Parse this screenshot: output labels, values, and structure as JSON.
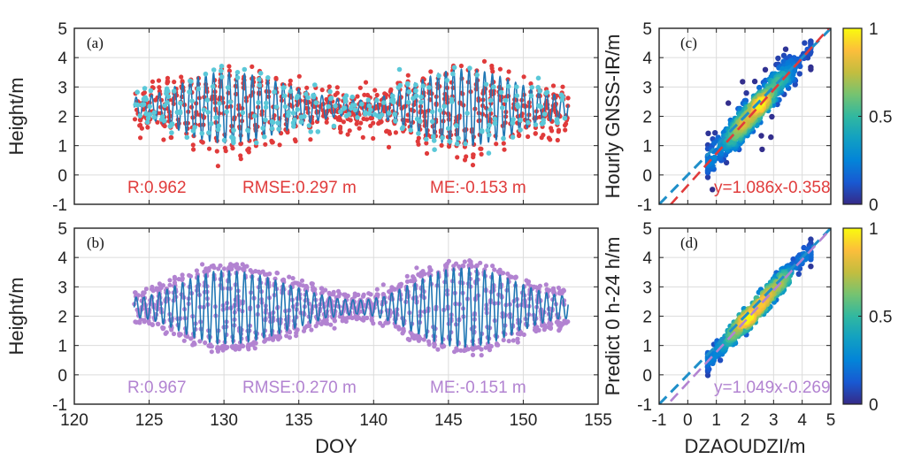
{
  "colors": {
    "ts_line": "#1f77b4",
    "ts_scatter_a": "#e03b3b",
    "ts_scatter_a2": "#5bc8d8",
    "ts_scatter_b": "#b283d1",
    "fit_a": "#e03b3b",
    "fit_b": "#b283d1",
    "one_to_one": "#1f8fc9",
    "stats_a": "#e03b3b",
    "stats_b": "#b283d1"
  },
  "chart_data": [
    {
      "id": "a",
      "type": "line",
      "panel_label": "(a)",
      "ylabel": "Height/m",
      "xlabel": "",
      "xlim": [
        120,
        155
      ],
      "ylim": [
        -1,
        5
      ],
      "xticks": [
        "120",
        "125",
        "130",
        "135",
        "140",
        "145",
        "150",
        "155"
      ],
      "yticks": [
        "-1",
        "0",
        "1",
        "2",
        "3",
        "4",
        "5"
      ],
      "show_xticklabels": false,
      "grid": true,
      "x_range_data": [
        124,
        153
      ],
      "mean_level": 2.3,
      "amplitude_peaks": [
        {
          "x": 130,
          "amp": 1.2
        },
        {
          "x": 146,
          "amp": 1.3
        }
      ],
      "amplitude_minima": [
        {
          "x": 124,
          "amp": 0.35
        },
        {
          "x": 139,
          "amp": 0.25
        },
        {
          "x": 153,
          "amp": 0.4
        }
      ],
      "tidal_period_days": 0.5175,
      "series": [
        {
          "role": "measured_line",
          "color": "#1f77b4"
        },
        {
          "role": "estimate_scatter",
          "color": "#e03b3b"
        },
        {
          "role": "estimate_scatter_secondary",
          "color": "#5bc8d8"
        }
      ],
      "stats": {
        "r": "R:0.962",
        "rmse": "RMSE:0.297 m",
        "me": "ME:-0.153 m"
      }
    },
    {
      "id": "b",
      "type": "line",
      "panel_label": "(b)",
      "ylabel": "Height/m",
      "xlabel": "DOY",
      "xlim": [
        120,
        155
      ],
      "ylim": [
        -1,
        5
      ],
      "xticks": [
        "120",
        "125",
        "130",
        "135",
        "140",
        "145",
        "150",
        "155"
      ],
      "yticks": [
        "-1",
        "0",
        "1",
        "2",
        "3",
        "4",
        "5"
      ],
      "show_xticklabels": true,
      "grid": true,
      "x_range_data": [
        124,
        153
      ],
      "mean_level": 2.3,
      "amplitude_peaks": [
        {
          "x": 130,
          "amp": 1.25
        },
        {
          "x": 146,
          "amp": 1.35
        }
      ],
      "amplitude_minima": [
        {
          "x": 124,
          "amp": 0.35
        },
        {
          "x": 139,
          "amp": 0.25
        },
        {
          "x": 153,
          "amp": 0.4
        }
      ],
      "tidal_period_days": 0.5175,
      "series": [
        {
          "role": "measured_line",
          "color": "#1f77b4"
        },
        {
          "role": "prediction_scatter",
          "color": "#b283d1"
        }
      ],
      "stats": {
        "r": "R:0.967",
        "rmse": "RMSE:0.270 m",
        "me": "ME:-0.151 m"
      }
    },
    {
      "id": "c",
      "type": "scatter",
      "panel_label": "(c)",
      "ylabel": "Hourly GNSS-IR/m",
      "xlabel": "",
      "xlim": [
        -1,
        5
      ],
      "ylim": [
        -1,
        5
      ],
      "xticks": [
        "-1",
        "0",
        "1",
        "2",
        "3",
        "4",
        "5"
      ],
      "yticks": [
        "-1",
        "0",
        "1",
        "2",
        "3",
        "4",
        "5"
      ],
      "show_xticklabels": false,
      "grid": true,
      "fit": {
        "slope": 1.086,
        "intercept": -0.358,
        "label": "y=1.086x-0.358",
        "color": "#e03b3b"
      },
      "one_to_one": true,
      "colorbar": {
        "ticks": [
          "0",
          "0.5",
          "1"
        ],
        "colormap": "parula",
        "range": [
          0,
          1
        ]
      }
    },
    {
      "id": "d",
      "type": "scatter",
      "panel_label": "(d)",
      "ylabel": "Predict 0 h-24 h/m",
      "xlabel": "DZAOUDZI/m",
      "xlim": [
        -1,
        5
      ],
      "ylim": [
        -1,
        5
      ],
      "xticks": [
        "-1",
        "0",
        "1",
        "2",
        "3",
        "4",
        "5"
      ],
      "yticks": [
        "-1",
        "0",
        "1",
        "2",
        "3",
        "4",
        "5"
      ],
      "show_xticklabels": true,
      "grid": true,
      "fit": {
        "slope": 1.049,
        "intercept": -0.269,
        "label": "y=1.049x-0.269",
        "color": "#b283d1"
      },
      "one_to_one": true,
      "colorbar": {
        "ticks": [
          "0",
          "0.5",
          "1"
        ],
        "colormap": "parula",
        "range": [
          0,
          1
        ]
      }
    }
  ]
}
